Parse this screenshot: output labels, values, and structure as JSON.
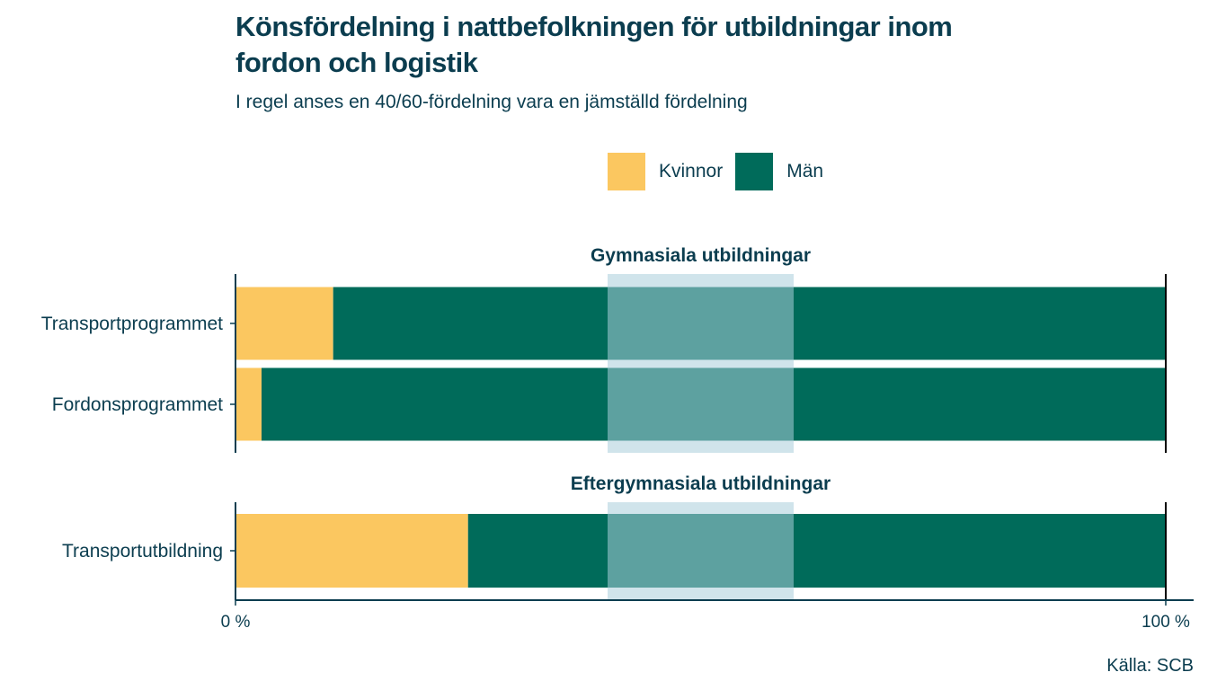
{
  "title": "Könsfördelning i nattbefolkningen för utbildningar inom fordon och logistik",
  "subtitle": "I regel anses en 40/60-fördelning vara en jämställd fördelning",
  "source": "Källa: SCB",
  "colors": {
    "kvinnor": "#fbc760",
    "man": "#006b5a",
    "band": "#a9cddb",
    "text": "#0b3d4f"
  },
  "chart_data": {
    "type": "bar",
    "orientation": "horizontal",
    "stacked": true,
    "xlim": [
      0,
      100
    ],
    "x_ticks": [
      "0 %",
      "100 %"
    ],
    "reference_band": [
      40,
      60
    ],
    "legend": [
      "Kvinnor",
      "Män"
    ],
    "legend_position": "top",
    "facets": [
      {
        "title": "Gymnasiala utbildningar",
        "categories": [
          "Transportprogrammet",
          "Fordonsprogrammet"
        ],
        "series": [
          {
            "name": "Kvinnor",
            "values": [
              10.5,
              2.8
            ]
          },
          {
            "name": "Män",
            "values": [
              89.5,
              97.2
            ]
          }
        ]
      },
      {
        "title": "Eftergymnasiala utbildningar",
        "categories": [
          "Transportutbildning"
        ],
        "series": [
          {
            "name": "Kvinnor",
            "values": [
              25
            ]
          },
          {
            "name": "Män",
            "values": [
              75
            ]
          }
        ]
      }
    ]
  }
}
